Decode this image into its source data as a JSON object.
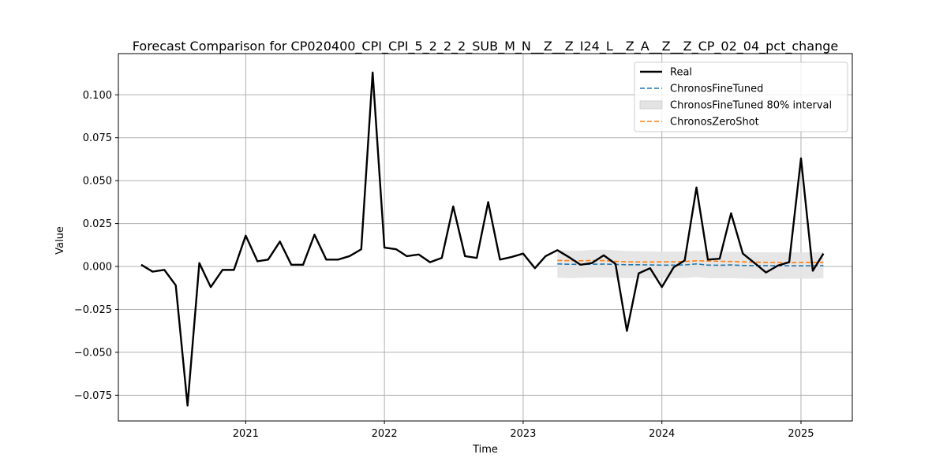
{
  "chart_data": {
    "type": "line",
    "title": "Forecast Comparison for CP020400_CPI_CPI_5_2_2_2_SUB_M_N__Z__Z_I24_L__Z_A__Z__Z_CP_02_04_pct_change",
    "xlabel": "Time",
    "ylabel": "Value",
    "xlim": [
      "2020-02-01",
      "2025-05-16"
    ],
    "ylim": [
      -0.09,
      0.124
    ],
    "x_ticks": [
      "2021-01-01",
      "2022-01-01",
      "2023-01-01",
      "2024-01-01",
      "2025-01-01"
    ],
    "x_tick_labels": [
      "2021",
      "2022",
      "2023",
      "2024",
      "2025"
    ],
    "y_ticks": [
      -0.075,
      -0.05,
      -0.025,
      0.0,
      0.025,
      0.05,
      0.075,
      0.1
    ],
    "y_tick_labels": [
      "−0.075",
      "−0.050",
      "−0.025",
      "0.000",
      "0.025",
      "0.050",
      "0.075",
      "0.100"
    ],
    "grid": true,
    "legend_position": "top-right",
    "series": [
      {
        "name": "Real",
        "style": "solid",
        "color": "#000000",
        "x": [
          "2020-04-01",
          "2020-05-01",
          "2020-06-01",
          "2020-07-01",
          "2020-08-01",
          "2020-09-01",
          "2020-10-01",
          "2020-11-01",
          "2020-12-01",
          "2021-01-01",
          "2021-02-01",
          "2021-03-01",
          "2021-04-01",
          "2021-05-01",
          "2021-06-01",
          "2021-07-01",
          "2021-08-01",
          "2021-09-01",
          "2021-10-01",
          "2021-11-01",
          "2021-12-01",
          "2022-01-01",
          "2022-02-01",
          "2022-03-01",
          "2022-04-01",
          "2022-05-01",
          "2022-06-01",
          "2022-07-01",
          "2022-08-01",
          "2022-09-01",
          "2022-10-01",
          "2022-11-01",
          "2022-12-01",
          "2023-01-01",
          "2023-02-01",
          "2023-03-01",
          "2023-04-01",
          "2023-05-01",
          "2023-06-01",
          "2023-07-01",
          "2023-08-01",
          "2023-09-01",
          "2023-10-01",
          "2023-11-01",
          "2023-12-01",
          "2024-01-01",
          "2024-02-01",
          "2024-03-01",
          "2024-04-01",
          "2024-05-01",
          "2024-06-01",
          "2024-07-01",
          "2024-08-01",
          "2024-09-01",
          "2024-10-01",
          "2024-11-01",
          "2024-12-01",
          "2025-01-01",
          "2025-02-01",
          "2025-03-01"
        ],
        "values": [
          0.001,
          -0.003,
          -0.002,
          -0.011,
          -0.081,
          0.002,
          -0.012,
          -0.002,
          -0.002,
          0.018,
          0.003,
          0.004,
          0.0145,
          0.001,
          0.001,
          0.0185,
          0.004,
          0.004,
          0.006,
          0.01,
          0.113,
          0.011,
          0.01,
          0.006,
          0.007,
          0.0025,
          0.005,
          0.035,
          0.006,
          0.005,
          0.0375,
          0.004,
          0.0055,
          0.0075,
          -0.001,
          0.006,
          0.0095,
          0.0055,
          0.001,
          0.002,
          0.0065,
          0.0015,
          -0.0375,
          -0.004,
          -0.001,
          -0.012,
          -0.0005,
          0.0035,
          0.046,
          0.004,
          0.0045,
          0.031,
          0.0075,
          0.002,
          -0.0035,
          0.0005,
          0.0025,
          0.063,
          -0.0025,
          0.0075
        ]
      },
      {
        "name": "ChronosFineTuned",
        "style": "dashed",
        "color": "#1f77b4",
        "x": [
          "2023-04-01",
          "2023-05-01",
          "2023-06-01",
          "2023-07-01",
          "2023-08-01",
          "2023-09-01",
          "2023-10-01",
          "2023-11-01",
          "2023-12-01",
          "2024-01-01",
          "2024-02-01",
          "2024-03-01",
          "2024-04-01",
          "2024-05-01",
          "2024-06-01",
          "2024-07-01",
          "2024-08-01",
          "2024-09-01",
          "2024-10-01",
          "2024-11-01",
          "2024-12-01",
          "2025-01-01",
          "2025-02-01",
          "2025-03-01"
        ],
        "values": [
          0.0015,
          0.0013,
          0.0012,
          0.0013,
          0.0014,
          0.0012,
          0.001,
          0.001,
          0.0009,
          0.0008,
          0.0008,
          0.0009,
          0.0015,
          0.0008,
          0.0007,
          0.0009,
          0.0006,
          0.0005,
          0.0005,
          0.0004,
          0.0004,
          0.0004,
          0.0004,
          0.0005
        ]
      },
      {
        "name": "ChronosFineTuned 80% interval",
        "style": "band",
        "color": "#e3e3e3",
        "x": [
          "2023-04-01",
          "2023-05-01",
          "2023-06-01",
          "2023-07-01",
          "2023-08-01",
          "2023-09-01",
          "2023-10-01",
          "2023-11-01",
          "2023-12-01",
          "2024-01-01",
          "2024-02-01",
          "2024-03-01",
          "2024-04-01",
          "2024-05-01",
          "2024-06-01",
          "2024-07-01",
          "2024-08-01",
          "2024-09-01",
          "2024-10-01",
          "2024-11-01",
          "2024-12-01",
          "2025-01-01",
          "2025-02-01",
          "2025-03-01"
        ],
        "lower": [
          -0.0065,
          -0.0068,
          -0.0066,
          -0.0065,
          -0.0064,
          -0.0066,
          -0.0068,
          -0.0068,
          -0.0069,
          -0.0069,
          -0.0068,
          -0.0067,
          -0.0062,
          -0.0068,
          -0.0069,
          -0.0068,
          -0.007,
          -0.0071,
          -0.0071,
          -0.0072,
          -0.0071,
          -0.0071,
          -0.0071,
          -0.0069
        ],
        "upper": [
          0.0095,
          0.0093,
          0.0092,
          0.0097,
          0.0098,
          0.0094,
          0.009,
          0.0089,
          0.0088,
          0.0087,
          0.0087,
          0.0088,
          0.009,
          0.0086,
          0.0085,
          0.0086,
          0.0084,
          0.0083,
          0.0083,
          0.0082,
          0.0082,
          0.0082,
          0.0082,
          0.0083
        ]
      },
      {
        "name": "ChronosZeroShot",
        "style": "dashed",
        "color": "#ff7f0e",
        "x": [
          "2023-04-01",
          "2023-05-01",
          "2023-06-01",
          "2023-07-01",
          "2023-08-01",
          "2023-09-01",
          "2023-10-01",
          "2023-11-01",
          "2023-12-01",
          "2024-01-01",
          "2024-02-01",
          "2024-03-01",
          "2024-04-01",
          "2024-05-01",
          "2024-06-01",
          "2024-07-01",
          "2024-08-01",
          "2024-09-01",
          "2024-10-01",
          "2024-11-01",
          "2024-12-01",
          "2025-01-01",
          "2025-02-01",
          "2025-03-01"
        ],
        "values": [
          0.0035,
          0.0034,
          0.0033,
          0.0035,
          0.0034,
          0.003,
          0.0027,
          0.0026,
          0.0026,
          0.0027,
          0.0027,
          0.0029,
          0.0033,
          0.0032,
          0.003,
          0.0029,
          0.0027,
          0.0025,
          0.0024,
          0.0023,
          0.0022,
          0.0024,
          0.0024,
          0.0024
        ]
      }
    ]
  }
}
